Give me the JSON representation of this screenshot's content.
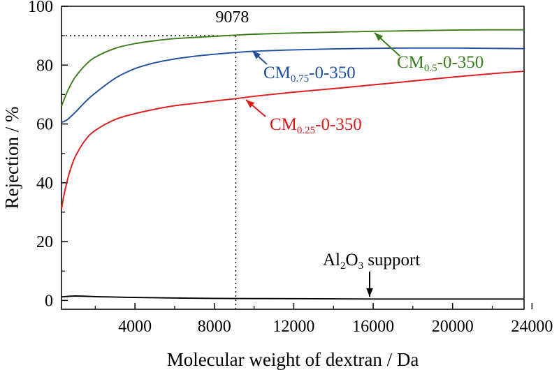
{
  "chart_data": {
    "type": "line",
    "title": "",
    "xlabel": "Molecular weight of dextran / Da",
    "ylabel": "Rejection / %",
    "xlim": [
      300,
      23600
    ],
    "ylim": [
      -3,
      100
    ],
    "xticks": [
      4000,
      8000,
      12000,
      16000,
      20000,
      24000
    ],
    "yticks": [
      0,
      20,
      40,
      60,
      80,
      100
    ],
    "xtick_labels": [
      "4000",
      "8000",
      "12000",
      "16000",
      "20000",
      "24000"
    ],
    "ytick_labels": [
      "0",
      "20",
      "40",
      "60",
      "80",
      "100"
    ],
    "grid": false,
    "series": [
      {
        "name": "CM0.5-0-350",
        "label": {
          "main": "CM",
          "sub": "0.5",
          "suffix": "-0-350"
        },
        "color": "#3a7d1e",
        "x": [
          300,
          500,
          700,
          1000,
          1500,
          2000,
          3000,
          4000,
          5000,
          6000,
          8000,
          9078,
          10000,
          12000,
          14000,
          16000,
          18000,
          20000,
          22000,
          23600
        ],
        "y": [
          66,
          69.5,
          72.5,
          76,
          80,
          82.7,
          85.7,
          87.3,
          88.3,
          89,
          89.8,
          90.2,
          90.5,
          90.9,
          91.2,
          91.5,
          91.7,
          91.9,
          92,
          92
        ]
      },
      {
        "name": "CM0.75-0-350",
        "label": {
          "main": "CM",
          "sub": "0.75",
          "suffix": "-0-350"
        },
        "color": "#1f4f9e",
        "x": [
          300,
          600,
          1000,
          1500,
          2000,
          3000,
          4000,
          5000,
          6000,
          7000,
          8000,
          9078,
          10000,
          12000,
          14000,
          16000,
          18000,
          20000,
          22000,
          23600
        ],
        "y": [
          60.5,
          61.5,
          64,
          67.5,
          70.5,
          75.5,
          78.8,
          80.8,
          82.1,
          83,
          83.7,
          84.3,
          84.7,
          85.2,
          85.5,
          85.7,
          85.8,
          85.8,
          85.7,
          85.6
        ]
      },
      {
        "name": "CM0.25-0-350",
        "label": {
          "main": "CM",
          "sub": "0.25",
          "suffix": "-0-350"
        },
        "color": "#dd1a1a",
        "x": [
          300,
          400,
          600,
          800,
          1000,
          1500,
          2000,
          3000,
          4000,
          5000,
          6000,
          8000,
          9078,
          10000,
          12000,
          14000,
          16000,
          18000,
          20000,
          22000,
          23600
        ],
        "y": [
          31,
          35,
          41,
          45.5,
          49,
          54.5,
          57.8,
          61.5,
          63.5,
          65,
          66.2,
          67.8,
          68.6,
          69.4,
          70.8,
          72,
          73.3,
          74.6,
          75.9,
          77.1,
          77.9
        ]
      },
      {
        "name": "Al2O3 support",
        "label": {
          "main": "Al",
          "sub": "2",
          "mid": "O",
          "sub2": "3",
          "suffix": " support"
        },
        "color": "#000000",
        "x": [
          300,
          1000,
          2000,
          4000,
          8000,
          12000,
          16000,
          20000,
          23600
        ],
        "y": [
          1.2,
          1.5,
          1.3,
          1.0,
          0.7,
          0.6,
          0.5,
          0.5,
          0.5
        ]
      }
    ],
    "annotations": {
      "marker_x": 9078,
      "marker_x_label": "9078",
      "marker_y": 90
    }
  }
}
